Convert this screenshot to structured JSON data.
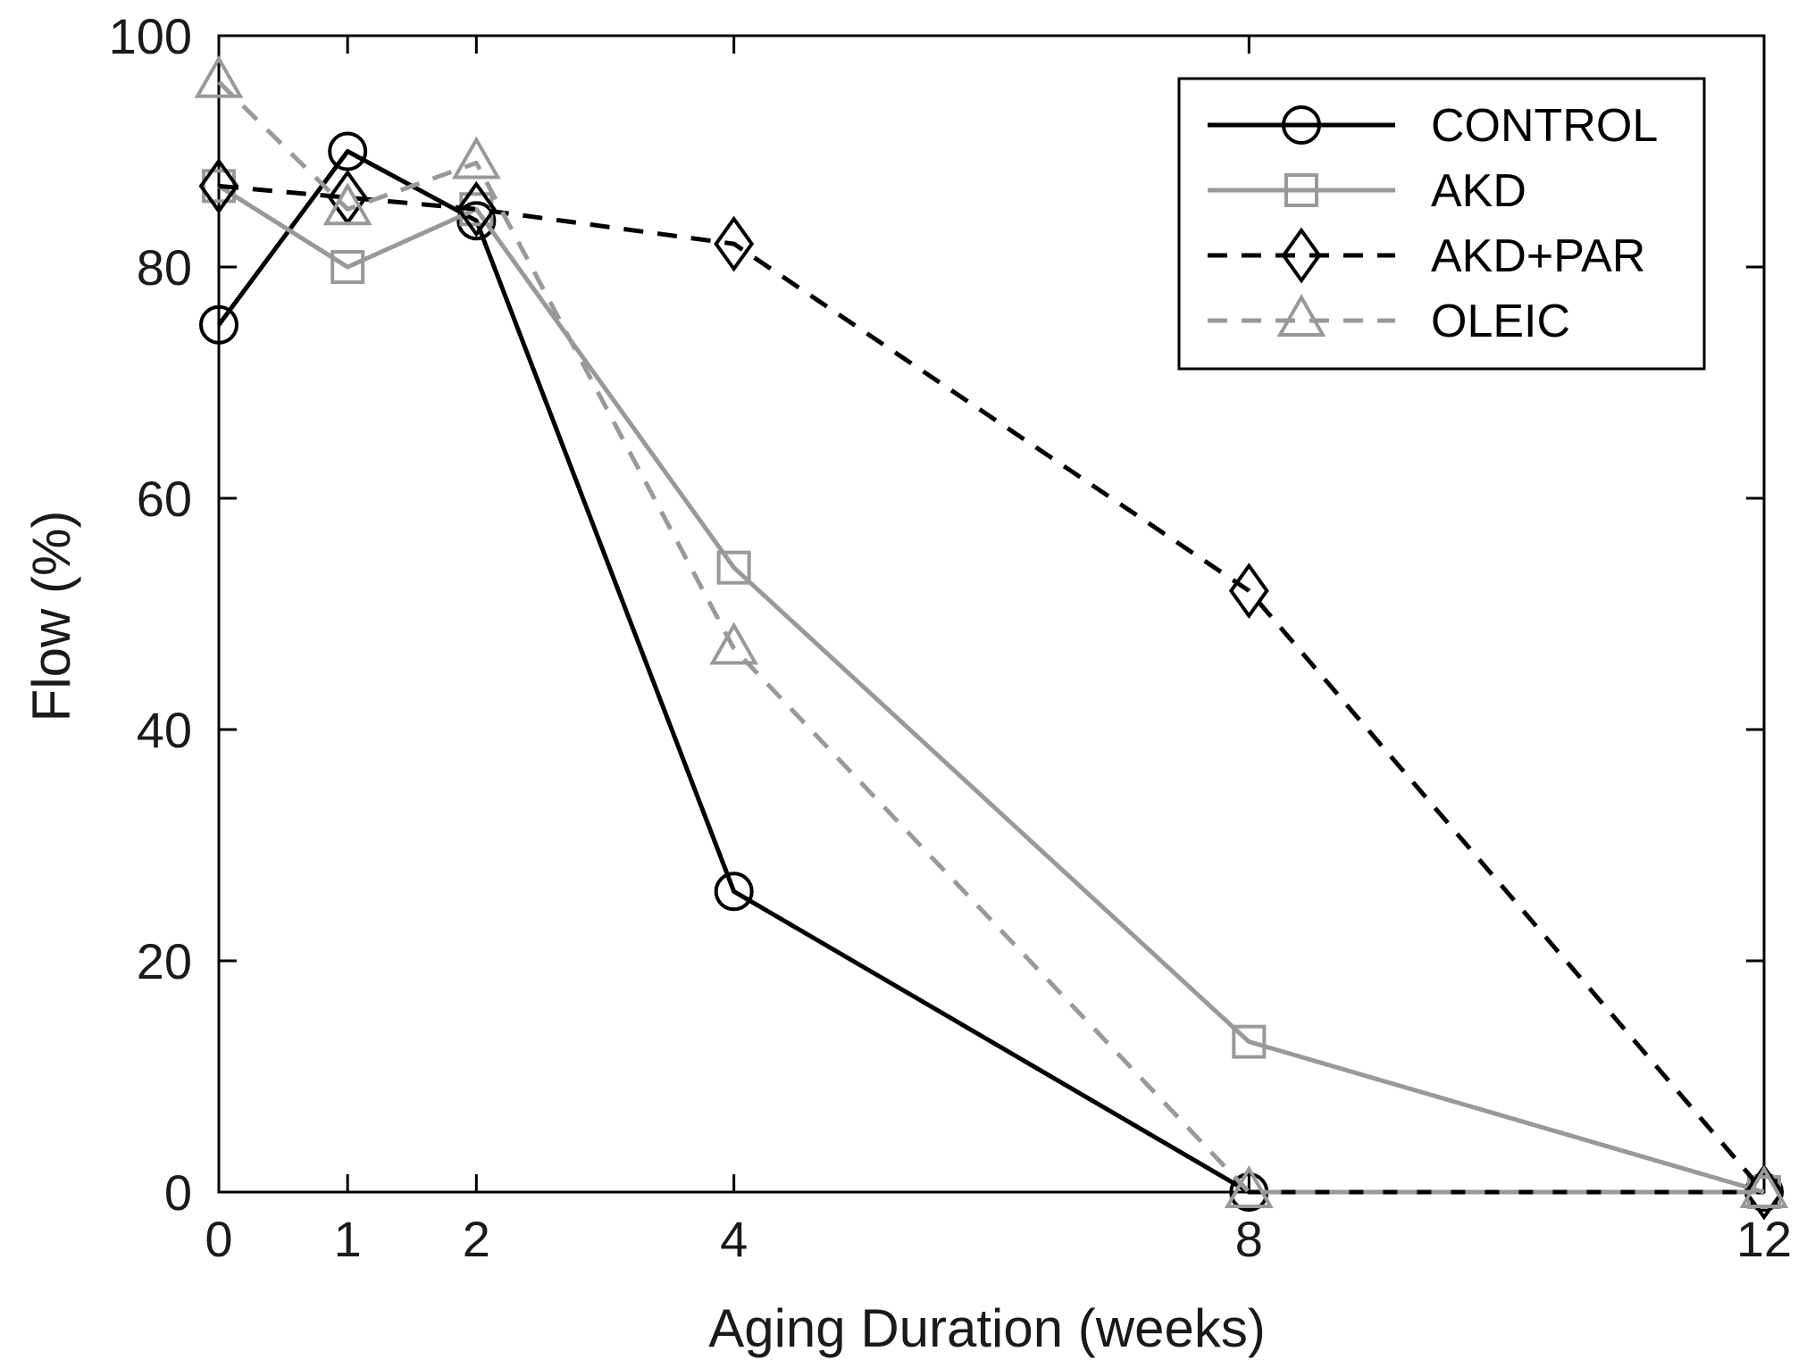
{
  "chart_data": {
    "type": "line",
    "title": "",
    "xlabel": "Aging Duration (weeks)",
    "ylabel": "Flow (%)",
    "xlim": [
      0,
      12
    ],
    "ylim": [
      0,
      100
    ],
    "grid": false,
    "legend_position": "top-right",
    "x": [
      0,
      1,
      2,
      4,
      8,
      12
    ],
    "xticks": [
      0,
      1,
      2,
      4,
      8,
      12
    ],
    "yticks": [
      0,
      20,
      40,
      60,
      80,
      100
    ],
    "series": [
      {
        "name": "CONTROL",
        "values": [
          75,
          90,
          84,
          26,
          0,
          0
        ],
        "color": "#000000",
        "dash": "solid",
        "marker": "circle"
      },
      {
        "name": "AKD",
        "values": [
          87,
          80,
          85,
          54,
          13,
          0
        ],
        "color": "#999999",
        "dash": "solid",
        "marker": "square"
      },
      {
        "name": "AKD+PAR",
        "values": [
          87,
          86,
          85,
          82,
          52,
          0
        ],
        "color": "#000000",
        "dash": "dashed",
        "marker": "diamond"
      },
      {
        "name": "OLEIC",
        "values": [
          96,
          85,
          89,
          47,
          0,
          0
        ],
        "color": "#999999",
        "dash": "dashed",
        "marker": "triangle"
      }
    ]
  }
}
